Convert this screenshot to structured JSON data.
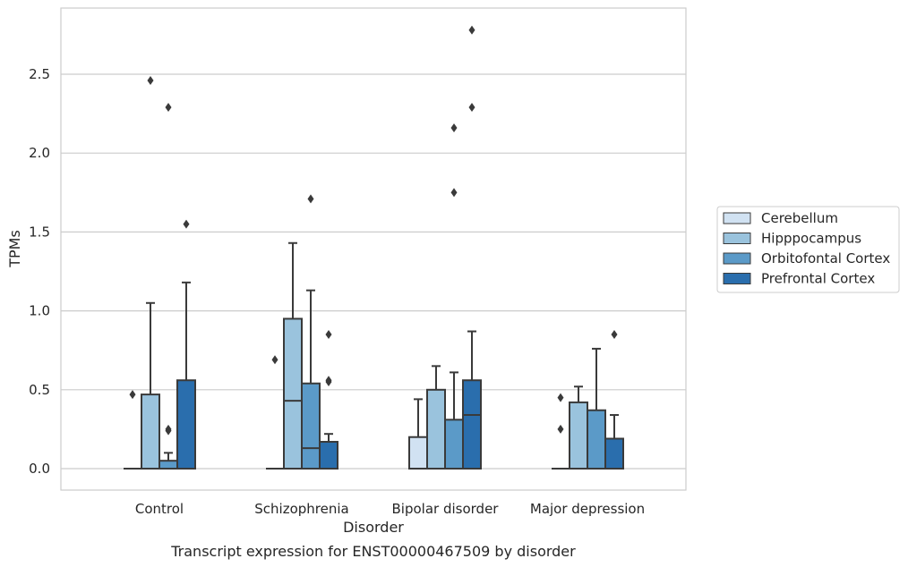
{
  "chart_data": {
    "type": "box",
    "caption": "Transcript expression for ENST00000467509 by disorder",
    "xlabel": "Disorder",
    "ylabel": "TPMs",
    "ylim": [
      -0.13,
      2.92
    ],
    "yticks": [
      0.0,
      0.5,
      1.0,
      1.5,
      2.0,
      2.5
    ],
    "ytick_labels": [
      "0.0",
      "0.5",
      "1.0",
      "1.5",
      "2.0",
      "2.5"
    ],
    "grid": "horizontal",
    "categories": [
      "Control",
      "Schizophrenia",
      "Bipolar disorder",
      "Major depression"
    ],
    "legend_position": "right",
    "series": [
      {
        "name": "Cerebellum",
        "color": "#d1e2f2",
        "boxes": [
          {
            "q1": 0.0,
            "median": 0.0,
            "q3": 0.0,
            "whislo": 0.0,
            "whishi": 0.0,
            "fliers": [
              0.47
            ]
          },
          {
            "q1": 0.0,
            "median": 0.0,
            "q3": 0.0,
            "whislo": 0.0,
            "whishi": 0.0,
            "fliers": [
              0.69
            ]
          },
          {
            "q1": 0.0,
            "median": 0.0,
            "q3": 0.2,
            "whislo": 0.0,
            "whishi": 0.44,
            "fliers": []
          },
          {
            "q1": 0.0,
            "median": 0.0,
            "q3": 0.0,
            "whislo": 0.0,
            "whishi": 0.0,
            "fliers": [
              0.45,
              0.25
            ]
          }
        ]
      },
      {
        "name": "Hipppocampus",
        "color": "#9ac3dd",
        "boxes": [
          {
            "q1": 0.0,
            "median": 0.0,
            "q3": 0.47,
            "whislo": 0.0,
            "whishi": 1.05,
            "fliers": [
              2.46
            ]
          },
          {
            "q1": 0.0,
            "median": 0.43,
            "q3": 0.95,
            "whislo": 0.0,
            "whishi": 1.43,
            "fliers": []
          },
          {
            "q1": 0.0,
            "median": 0.0,
            "q3": 0.5,
            "whislo": 0.0,
            "whishi": 0.65,
            "fliers": []
          },
          {
            "q1": 0.0,
            "median": 0.0,
            "q3": 0.42,
            "whislo": 0.0,
            "whishi": 0.52,
            "fliers": []
          }
        ]
      },
      {
        "name": "Orbitofontal Cortex",
        "color": "#5b9ac8",
        "boxes": [
          {
            "q1": 0.0,
            "median": 0.0,
            "q3": 0.05,
            "whislo": 0.0,
            "whishi": 0.1,
            "fliers": [
              0.25,
              0.24,
              2.29
            ]
          },
          {
            "q1": 0.0,
            "median": 0.13,
            "q3": 0.54,
            "whislo": 0.0,
            "whishi": 1.13,
            "fliers": [
              1.71
            ]
          },
          {
            "q1": 0.0,
            "median": 0.0,
            "q3": 0.31,
            "whislo": 0.0,
            "whishi": 0.61,
            "fliers": [
              1.75,
              2.16
            ]
          },
          {
            "q1": 0.0,
            "median": 0.0,
            "q3": 0.37,
            "whislo": 0.0,
            "whishi": 0.76,
            "fliers": []
          }
        ]
      },
      {
        "name": "Prefrontal Cortex",
        "color": "#2a6ead",
        "boxes": [
          {
            "q1": 0.0,
            "median": 0.0,
            "q3": 0.56,
            "whislo": 0.0,
            "whishi": 1.18,
            "fliers": [
              1.55
            ]
          },
          {
            "q1": 0.0,
            "median": 0.0,
            "q3": 0.17,
            "whislo": 0.0,
            "whishi": 0.22,
            "fliers": [
              0.85,
              0.55,
              0.56
            ]
          },
          {
            "q1": 0.0,
            "median": 0.34,
            "q3": 0.56,
            "whislo": 0.0,
            "whishi": 0.87,
            "fliers": [
              2.29,
              2.78
            ]
          },
          {
            "q1": 0.0,
            "median": 0.0,
            "q3": 0.19,
            "whislo": 0.0,
            "whishi": 0.34,
            "fliers": [
              0.85
            ]
          }
        ]
      }
    ]
  }
}
